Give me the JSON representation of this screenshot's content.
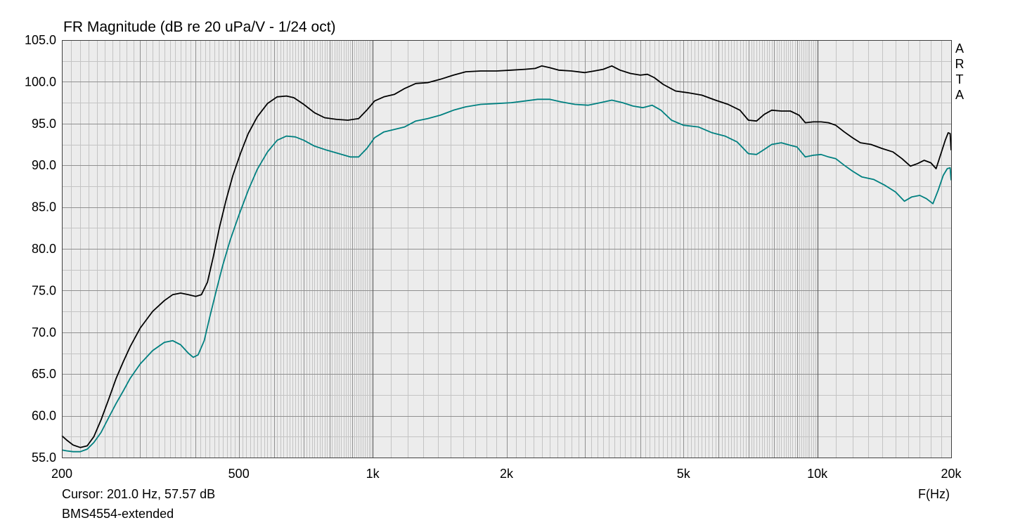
{
  "title": "FR Magnitude (dB re 20 uPa/V - 1/24 oct)",
  "cursor_readout": "Cursor: 201.0 Hz, 57.57 dB",
  "series_label": "BMS4554-extended",
  "x_unit_label": "F(Hz)",
  "watermark": [
    "A",
    "R",
    "T",
    "A"
  ],
  "colors": {
    "background": "#ffffff",
    "plot_background": "#ececec",
    "grid_major": "#909090",
    "grid_minor": "#c4c4c4",
    "series_black": "#000000",
    "series_teal": "#008080"
  },
  "chart_data": {
    "type": "line",
    "x_scale": "log",
    "xlim": [
      200,
      20000
    ],
    "ylim": [
      55,
      105
    ],
    "grid": true,
    "y_ticks": [
      {
        "value": 55,
        "label": "55.0"
      },
      {
        "value": 60,
        "label": "60.0"
      },
      {
        "value": 65,
        "label": "65.0"
      },
      {
        "value": 70,
        "label": "70.0"
      },
      {
        "value": 75,
        "label": "75.0"
      },
      {
        "value": 80,
        "label": "80.0"
      },
      {
        "value": 85,
        "label": "85.0"
      },
      {
        "value": 90,
        "label": "90.0"
      },
      {
        "value": 95,
        "label": "95.0"
      },
      {
        "value": 100,
        "label": "100.0"
      },
      {
        "value": 105,
        "label": "105.0"
      }
    ],
    "y_minor_step": 2.5,
    "x_ticks": [
      {
        "value": 200,
        "label": "200"
      },
      {
        "value": 500,
        "label": "500"
      },
      {
        "value": 1000,
        "label": "1k"
      },
      {
        "value": 2000,
        "label": "2k"
      },
      {
        "value": 5000,
        "label": "5k"
      },
      {
        "value": 10000,
        "label": "10k"
      },
      {
        "value": 20000,
        "label": "20k"
      }
    ],
    "x_major_grid": [
      1000,
      10000
    ],
    "x_minor_grid": [
      300,
      400,
      500,
      600,
      700,
      800,
      900,
      2000,
      3000,
      4000,
      5000,
      6000,
      7000,
      8000,
      9000
    ],
    "series": [
      {
        "color": "#000000",
        "points": [
          [
            200,
            57.6
          ],
          [
            205,
            57.1
          ],
          [
            212,
            56.5
          ],
          [
            220,
            56.2
          ],
          [
            228,
            56.4
          ],
          [
            236,
            57.5
          ],
          [
            245,
            59.5
          ],
          [
            255,
            62
          ],
          [
            265,
            64.5
          ],
          [
            275,
            66.5
          ],
          [
            285,
            68.3
          ],
          [
            300,
            70.5
          ],
          [
            320,
            72.5
          ],
          [
            340,
            73.8
          ],
          [
            355,
            74.5
          ],
          [
            370,
            74.7
          ],
          [
            385,
            74.5
          ],
          [
            400,
            74.3
          ],
          [
            412,
            74.5
          ],
          [
            425,
            76
          ],
          [
            438,
            79
          ],
          [
            452,
            82.5
          ],
          [
            468,
            85.8
          ],
          [
            485,
            88.8
          ],
          [
            505,
            91.5
          ],
          [
            525,
            93.8
          ],
          [
            550,
            95.8
          ],
          [
            580,
            97.4
          ],
          [
            610,
            98.2
          ],
          [
            640,
            98.3
          ],
          [
            665,
            98.1
          ],
          [
            700,
            97.3
          ],
          [
            740,
            96.3
          ],
          [
            780,
            95.7
          ],
          [
            830,
            95.5
          ],
          [
            880,
            95.4
          ],
          [
            930,
            95.6
          ],
          [
            970,
            96.6
          ],
          [
            1010,
            97.7
          ],
          [
            1060,
            98.2
          ],
          [
            1120,
            98.5
          ],
          [
            1180,
            99.2
          ],
          [
            1250,
            99.8
          ],
          [
            1330,
            99.9
          ],
          [
            1420,
            100.3
          ],
          [
            1520,
            100.8
          ],
          [
            1620,
            101.2
          ],
          [
            1750,
            101.3
          ],
          [
            1900,
            101.3
          ],
          [
            2050,
            101.4
          ],
          [
            2200,
            101.5
          ],
          [
            2320,
            101.6
          ],
          [
            2400,
            101.9
          ],
          [
            2500,
            101.7
          ],
          [
            2620,
            101.4
          ],
          [
            2800,
            101.3
          ],
          [
            3000,
            101.1
          ],
          [
            3150,
            101.3
          ],
          [
            3300,
            101.5
          ],
          [
            3450,
            101.9
          ],
          [
            3600,
            101.4
          ],
          [
            3800,
            101.0
          ],
          [
            4000,
            100.8
          ],
          [
            4150,
            100.9
          ],
          [
            4300,
            100.5
          ],
          [
            4500,
            99.7
          ],
          [
            4800,
            98.9
          ],
          [
            5100,
            98.7
          ],
          [
            5500,
            98.4
          ],
          [
            5900,
            97.8
          ],
          [
            6300,
            97.3
          ],
          [
            6700,
            96.6
          ],
          [
            7000,
            95.4
          ],
          [
            7300,
            95.3
          ],
          [
            7600,
            96.1
          ],
          [
            7900,
            96.6
          ],
          [
            8300,
            96.5
          ],
          [
            8700,
            96.5
          ],
          [
            9100,
            96.0
          ],
          [
            9400,
            95.1
          ],
          [
            9800,
            95.2
          ],
          [
            10200,
            95.2
          ],
          [
            10600,
            95.1
          ],
          [
            11000,
            94.8
          ],
          [
            11500,
            94.0
          ],
          [
            12000,
            93.3
          ],
          [
            12500,
            92.7
          ],
          [
            13200,
            92.5
          ],
          [
            14000,
            92.0
          ],
          [
            14800,
            91.6
          ],
          [
            15500,
            90.8
          ],
          [
            16200,
            89.9
          ],
          [
            16800,
            90.2
          ],
          [
            17400,
            90.6
          ],
          [
            18000,
            90.3
          ],
          [
            18500,
            89.6
          ],
          [
            19000,
            91.5
          ],
          [
            19400,
            93.0
          ],
          [
            19700,
            93.9
          ],
          [
            19900,
            93.8
          ],
          [
            20000,
            91.8
          ]
        ]
      },
      {
        "color": "#008080",
        "points": [
          [
            200,
            55.9
          ],
          [
            205,
            55.8
          ],
          [
            212,
            55.7
          ],
          [
            220,
            55.7
          ],
          [
            228,
            56.0
          ],
          [
            236,
            56.8
          ],
          [
            245,
            58.0
          ],
          [
            255,
            59.8
          ],
          [
            265,
            61.5
          ],
          [
            275,
            63.0
          ],
          [
            285,
            64.5
          ],
          [
            300,
            66.2
          ],
          [
            320,
            67.8
          ],
          [
            340,
            68.8
          ],
          [
            355,
            69.0
          ],
          [
            370,
            68.5
          ],
          [
            385,
            67.5
          ],
          [
            395,
            67.0
          ],
          [
            405,
            67.3
          ],
          [
            418,
            69.0
          ],
          [
            430,
            71.8
          ],
          [
            445,
            75.0
          ],
          [
            460,
            78.0
          ],
          [
            478,
            81.0
          ],
          [
            500,
            84.0
          ],
          [
            525,
            87.0
          ],
          [
            550,
            89.5
          ],
          [
            580,
            91.6
          ],
          [
            610,
            93.0
          ],
          [
            640,
            93.5
          ],
          [
            670,
            93.4
          ],
          [
            700,
            93.0
          ],
          [
            740,
            92.3
          ],
          [
            790,
            91.8
          ],
          [
            840,
            91.4
          ],
          [
            890,
            91.0
          ],
          [
            930,
            91.0
          ],
          [
            970,
            92.0
          ],
          [
            1010,
            93.3
          ],
          [
            1060,
            94.0
          ],
          [
            1120,
            94.3
          ],
          [
            1180,
            94.6
          ],
          [
            1250,
            95.3
          ],
          [
            1330,
            95.6
          ],
          [
            1420,
            96.0
          ],
          [
            1520,
            96.6
          ],
          [
            1620,
            97.0
          ],
          [
            1750,
            97.3
          ],
          [
            1900,
            97.4
          ],
          [
            2050,
            97.5
          ],
          [
            2200,
            97.7
          ],
          [
            2350,
            97.9
          ],
          [
            2500,
            97.9
          ],
          [
            2650,
            97.6
          ],
          [
            2850,
            97.3
          ],
          [
            3050,
            97.2
          ],
          [
            3250,
            97.5
          ],
          [
            3450,
            97.8
          ],
          [
            3650,
            97.5
          ],
          [
            3850,
            97.1
          ],
          [
            4050,
            96.9
          ],
          [
            4250,
            97.2
          ],
          [
            4450,
            96.6
          ],
          [
            4700,
            95.4
          ],
          [
            5000,
            94.8
          ],
          [
            5400,
            94.6
          ],
          [
            5800,
            93.9
          ],
          [
            6200,
            93.5
          ],
          [
            6600,
            92.8
          ],
          [
            7000,
            91.4
          ],
          [
            7300,
            91.3
          ],
          [
            7600,
            91.9
          ],
          [
            7900,
            92.5
          ],
          [
            8300,
            92.7
          ],
          [
            8700,
            92.4
          ],
          [
            9000,
            92.2
          ],
          [
            9400,
            91.0
          ],
          [
            9800,
            91.2
          ],
          [
            10200,
            91.3
          ],
          [
            10600,
            91.0
          ],
          [
            11000,
            90.8
          ],
          [
            11500,
            90.0
          ],
          [
            12000,
            89.3
          ],
          [
            12600,
            88.6
          ],
          [
            13400,
            88.3
          ],
          [
            14200,
            87.6
          ],
          [
            15000,
            86.8
          ],
          [
            15700,
            85.7
          ],
          [
            16300,
            86.2
          ],
          [
            17000,
            86.4
          ],
          [
            17600,
            86.0
          ],
          [
            18200,
            85.4
          ],
          [
            18700,
            87.0
          ],
          [
            19200,
            88.8
          ],
          [
            19600,
            89.6
          ],
          [
            19900,
            89.7
          ],
          [
            20000,
            88.2
          ]
        ]
      }
    ]
  }
}
